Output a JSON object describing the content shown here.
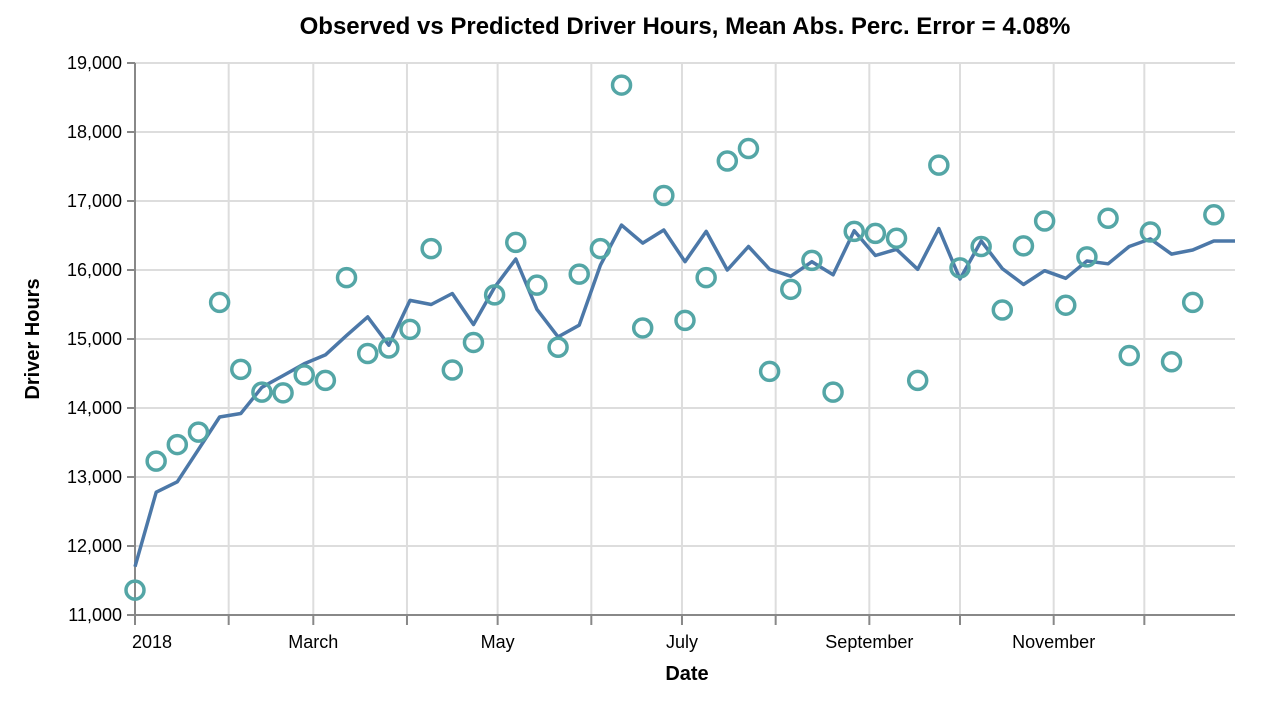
{
  "chart_data": {
    "type": "line",
    "title": "Observed vs Predicted Driver Hours, Mean Abs. Perc. Error = 4.08%",
    "xlabel": "Date",
    "ylabel": "Driver Hours",
    "ylim": [
      11000,
      19000
    ],
    "y_ticks": [
      {
        "value": 11000,
        "label": "11,000"
      },
      {
        "value": 12000,
        "label": "12,000"
      },
      {
        "value": 13000,
        "label": "13,000"
      },
      {
        "value": 14000,
        "label": "14,000"
      },
      {
        "value": 15000,
        "label": "15,000"
      },
      {
        "value": 16000,
        "label": "16,000"
      },
      {
        "value": 17000,
        "label": "17,000"
      },
      {
        "value": 18000,
        "label": "18,000"
      },
      {
        "value": 19000,
        "label": "19,000"
      }
    ],
    "x_range": [
      "2018-01-01",
      "2018-12-31"
    ],
    "x_ticks": [
      {
        "date": "2018-01-01",
        "label": "2018"
      },
      {
        "date": "2018-02-01",
        "label": ""
      },
      {
        "date": "2018-03-01",
        "label": "March"
      },
      {
        "date": "2018-04-01",
        "label": ""
      },
      {
        "date": "2018-05-01",
        "label": "May"
      },
      {
        "date": "2018-06-01",
        "label": ""
      },
      {
        "date": "2018-07-01",
        "label": "July"
      },
      {
        "date": "2018-08-01",
        "label": ""
      },
      {
        "date": "2018-09-01",
        "label": "September"
      },
      {
        "date": "2018-10-01",
        "label": ""
      },
      {
        "date": "2018-11-01",
        "label": "November"
      },
      {
        "date": "2018-12-01",
        "label": ""
      }
    ],
    "grid": true,
    "colors": {
      "predicted": "#4c78a8",
      "observed": "#54a6a6"
    },
    "dates": [
      "2018-01-01",
      "2018-01-08",
      "2018-01-15",
      "2018-01-22",
      "2018-01-29",
      "2018-02-05",
      "2018-02-12",
      "2018-02-19",
      "2018-02-26",
      "2018-03-05",
      "2018-03-12",
      "2018-03-19",
      "2018-03-26",
      "2018-04-02",
      "2018-04-09",
      "2018-04-16",
      "2018-04-23",
      "2018-04-30",
      "2018-05-07",
      "2018-05-14",
      "2018-05-21",
      "2018-05-28",
      "2018-06-04",
      "2018-06-11",
      "2018-06-18",
      "2018-06-25",
      "2018-07-02",
      "2018-07-09",
      "2018-07-16",
      "2018-07-23",
      "2018-07-30",
      "2018-08-06",
      "2018-08-13",
      "2018-08-20",
      "2018-08-27",
      "2018-09-03",
      "2018-09-10",
      "2018-09-17",
      "2018-09-24",
      "2018-10-01",
      "2018-10-08",
      "2018-10-15",
      "2018-10-22",
      "2018-10-29",
      "2018-11-05",
      "2018-11-12",
      "2018-11-19",
      "2018-11-26",
      "2018-12-03",
      "2018-12-10",
      "2018-12-17",
      "2018-12-24",
      "2018-12-31"
    ],
    "series": [
      {
        "kind": "line",
        "values": [
          11700,
          12780,
          12930,
          13400,
          13870,
          13920,
          14300,
          14470,
          14640,
          14770,
          15050,
          15320,
          14910,
          15560,
          15500,
          15660,
          15210,
          15750,
          16160,
          15430,
          15030,
          15200,
          16070,
          16650,
          16390,
          16580,
          16120,
          16560,
          16000,
          16340,
          16010,
          15910,
          16120,
          15930,
          16570,
          16210,
          16300,
          16010,
          16600,
          15870,
          16420,
          16020,
          15790,
          15990,
          15880,
          16130,
          16090,
          16340,
          16450,
          16230,
          16290,
          16420,
          16420
        ]
      },
      {
        "kind": "points",
        "values": [
          11360,
          13230,
          13470,
          13650,
          15530,
          14560,
          14230,
          14220,
          14480,
          14400,
          15890,
          14790,
          14870,
          15140,
          16310,
          14550,
          14950,
          15640,
          16400,
          15780,
          14880,
          15940,
          16310,
          18680,
          15160,
          17080,
          15270,
          15890,
          17580,
          17760,
          14530,
          15720,
          16140,
          14230,
          16560,
          16530,
          16460,
          14400,
          17520,
          16030,
          16340,
          15420,
          16350,
          16710,
          15490,
          16190,
          16750,
          14760,
          16550,
          14670,
          15530,
          16800,
          null
        ]
      }
    ]
  }
}
